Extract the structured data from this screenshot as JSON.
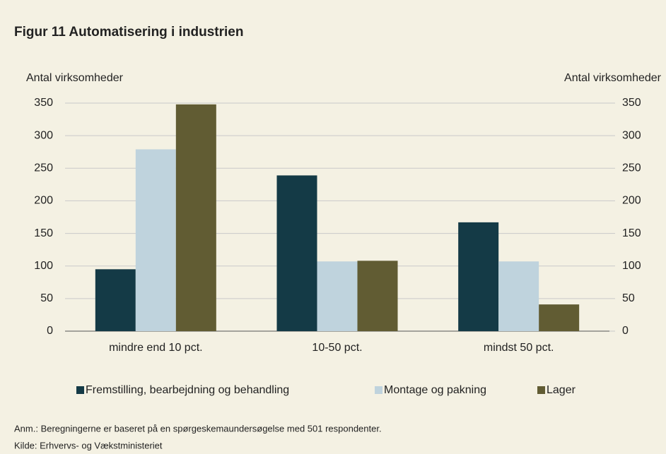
{
  "chart_data": {
    "type": "bar",
    "title": "Figur 11 Automatisering i industrien",
    "ylabel": "Antal virksomheder",
    "y2label": "Antal virksomheder",
    "categories": [
      "mindre end 10 pct.",
      "10-50 pct.",
      "mindst 50 pct."
    ],
    "series": [
      {
        "name": "Fremstilling, bearbejdning og behandling",
        "color": "#143a46",
        "values": [
          95,
          239,
          167
        ]
      },
      {
        "name": "Montage og pakning",
        "color": "#bfd3dd",
        "values": [
          279,
          107,
          107
        ]
      },
      {
        "name": "Lager",
        "color": "#615c33",
        "values": [
          348,
          108,
          41
        ]
      }
    ],
    "ylim": [
      0,
      350
    ],
    "yticks": [
      0,
      50,
      100,
      150,
      200,
      250,
      300,
      350
    ],
    "y2lim": [
      0,
      350
    ],
    "y2ticks": [
      0,
      50,
      100,
      150,
      200,
      250,
      300,
      350
    ],
    "grid": true,
    "legend": "bottom",
    "notes": [
      "Anm.: Beregningerne er baseret på en spørgeskemaundersøgelse med 501 respondenter.",
      "Kilde: Erhvervs- og Vækstministeriet"
    ]
  }
}
